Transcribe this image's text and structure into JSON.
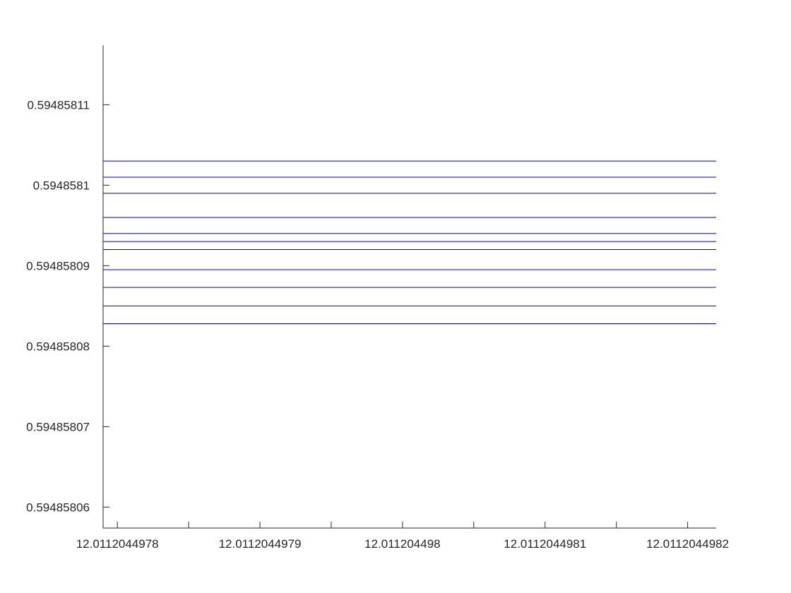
{
  "chart_data": {
    "type": "line",
    "title": "",
    "xlabel": "",
    "ylabel": "",
    "xlim": [
      12.01120449779,
      12.01120449822
    ],
    "ylim": [
      0.5948580574,
      0.5948581174
    ],
    "grid": false,
    "legend": "none",
    "line_color": "#0000cc",
    "line_color_dark": "#000066",
    "x_ticks": [
      12.0112044978,
      12.0112044979,
      12.011204498,
      12.0112044981,
      12.0112044982
    ],
    "x_tick_labels": [
      "12.0112044978",
      "12.0112044979",
      "12.011204498",
      "12.0112044981",
      "12.0112044982"
    ],
    "x_minor_ticks": [
      12.01120449785,
      12.01120449795,
      12.01120449805,
      12.01120449815
    ],
    "y_ticks": [
      0.59485806,
      0.59485807,
      0.59485808,
      0.59485809,
      0.5948581,
      0.59485811
    ],
    "y_tick_labels": [
      "0.59485806",
      "0.59485807",
      "0.59485808",
      "0.59485809",
      "0.5948581",
      "0.59485811"
    ],
    "x_range": [
      12.01120449779,
      12.01120449822
    ],
    "series_values": [
      0.594858103,
      0.594858101,
      0.594858099,
      0.594858096,
      0.594858094,
      0.594858093,
      0.594858092,
      0.5948580895,
      0.5948580873,
      0.594858085,
      0.5948580828
    ]
  }
}
